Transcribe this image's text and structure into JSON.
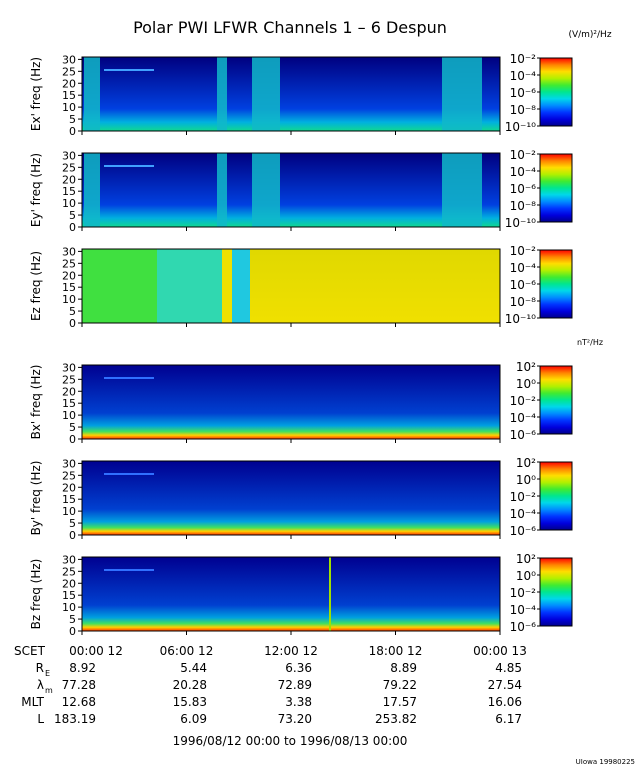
{
  "title": "Polar PWI LFWR Channels 1 – 6 Despun",
  "unit_e": "(V/m)²/Hz",
  "unit_b": "nT²/Hz",
  "footer": "UIowa 19980225",
  "date_range": "1996/08/12 00:00 to 1996/08/13 00:00",
  "chart_data": [
    {
      "type": "heatmap",
      "ylabel": "Ex' freq (Hz)",
      "ylim": [
        0,
        31
      ],
      "yticks": [
        0,
        5,
        10,
        15,
        20,
        25,
        30
      ],
      "colorbar": {
        "min_exp": -10,
        "max_exp": -2,
        "labels": [
          "10⁻²",
          "10⁻⁴",
          "10⁻⁶",
          "10⁻⁸",
          "10⁻¹⁰"
        ]
      }
    },
    {
      "type": "heatmap",
      "ylabel": "Ey' freq (Hz)",
      "ylim": [
        0,
        31
      ],
      "yticks": [
        0,
        5,
        10,
        15,
        20,
        25,
        30
      ],
      "colorbar": {
        "min_exp": -10,
        "max_exp": -2,
        "labels": [
          "10⁻²",
          "10⁻⁴",
          "10⁻⁶",
          "10⁻⁸",
          "10⁻¹⁰"
        ]
      }
    },
    {
      "type": "heatmap",
      "ylabel": "Ez freq (Hz)",
      "ylim": [
        0,
        31
      ],
      "yticks": [
        0,
        5,
        10,
        15,
        20,
        25,
        30
      ],
      "colorbar": {
        "min_exp": -10,
        "max_exp": -2,
        "labels": [
          "10⁻²",
          "10⁻⁴",
          "10⁻⁶",
          "10⁻⁸",
          "10⁻¹⁰"
        ]
      }
    },
    {
      "type": "heatmap",
      "ylabel": "Bx' freq (Hz)",
      "ylim": [
        0,
        31
      ],
      "yticks": [
        0,
        5,
        10,
        15,
        20,
        25,
        30
      ],
      "colorbar": {
        "min_exp": -6,
        "max_exp": 2,
        "labels": [
          "10²",
          "10⁰",
          "10⁻²",
          "10⁻⁴",
          "10⁻⁶"
        ]
      }
    },
    {
      "type": "heatmap",
      "ylabel": "By' freq (Hz)",
      "ylim": [
        0,
        31
      ],
      "yticks": [
        0,
        5,
        10,
        15,
        20,
        25,
        30
      ],
      "colorbar": {
        "min_exp": -6,
        "max_exp": 2,
        "labels": [
          "10²",
          "10⁰",
          "10⁻²",
          "10⁻⁴",
          "10⁻⁶"
        ]
      }
    },
    {
      "type": "heatmap",
      "ylabel": "Bz freq (Hz)",
      "ylim": [
        0,
        31
      ],
      "yticks": [
        0,
        5,
        10,
        15,
        20,
        25,
        30
      ],
      "colorbar": {
        "min_exp": -6,
        "max_exp": 2,
        "labels": [
          "10²",
          "10⁰",
          "10⁻²",
          "10⁻⁴",
          "10⁻⁶"
        ]
      }
    }
  ],
  "time_axis": {
    "label": "SCET",
    "ticks": [
      "00:00 12",
      "06:00 12",
      "12:00 12",
      "18:00 12",
      "00:00 13"
    ]
  },
  "ephemeris": [
    {
      "label": "R",
      "sub": "E",
      "values": [
        "8.92",
        "5.44",
        "6.36",
        "8.89",
        "4.85"
      ]
    },
    {
      "label": "λ",
      "sub": "m",
      "values": [
        "77.28",
        "20.28",
        "72.89",
        "79.22",
        "27.54"
      ]
    },
    {
      "label": "MLT",
      "sub": "",
      "values": [
        "12.68",
        "15.83",
        "3.38",
        "17.57",
        "16.06"
      ]
    },
    {
      "label": "L",
      "sub": "",
      "values": [
        "183.19",
        "6.09",
        "73.20",
        "253.82",
        "6.17"
      ]
    }
  ]
}
